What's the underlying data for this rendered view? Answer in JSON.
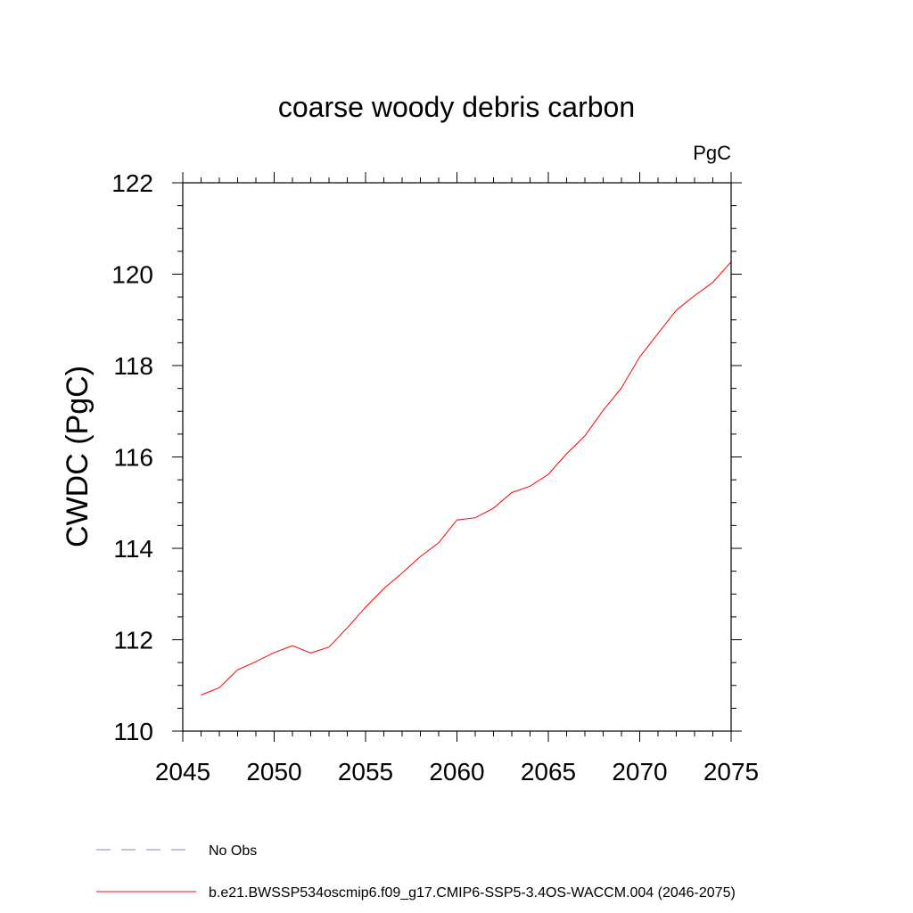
{
  "chart_data": {
    "type": "line",
    "title": "coarse woody debris carbon",
    "units_label": "PgC",
    "ylabel": "CWDC  (PgC)",
    "xlabel": "",
    "xlim": [
      2045,
      2075
    ],
    "ylim": [
      110,
      122
    ],
    "x_ticks": [
      "2045",
      "2050",
      "2055",
      "2060",
      "2065",
      "2070",
      "2075"
    ],
    "y_ticks": [
      "110",
      "112",
      "114",
      "116",
      "118",
      "120",
      "122"
    ],
    "grid": false,
    "legend_placement": "bottom",
    "series": [
      {
        "name": "b.e21.BWSSP534oscmip6.f09_g17.CMIP6-SSP5-3.4OS-WACCM.004 (2046-2075)",
        "color": "#ff0000",
        "style": "solid",
        "x": [
          2046,
          2047,
          2048,
          2049,
          2050,
          2051,
          2052,
          2053,
          2054,
          2055,
          2056,
          2057,
          2058,
          2059,
          2060,
          2061,
          2062,
          2063,
          2064,
          2065,
          2066,
          2067,
          2068,
          2069,
          2070,
          2071,
          2072,
          2073,
          2074,
          2075
        ],
        "y": [
          110.79,
          110.95,
          111.34,
          111.52,
          111.72,
          111.87,
          111.71,
          111.84,
          112.26,
          112.71,
          113.12,
          113.46,
          113.82,
          114.12,
          114.62,
          114.67,
          114.88,
          115.22,
          115.36,
          115.62,
          116.07,
          116.46,
          117.02,
          117.51,
          118.19,
          118.7,
          119.21,
          119.53,
          119.82,
          120.27
        ]
      }
    ],
    "legend": [
      {
        "label": "No Obs",
        "color": "#8080c0",
        "style": "dashed"
      },
      {
        "label": "b.e21.BWSSP534oscmip6.f09_g17.CMIP6-SSP5-3.4OS-WACCM.004 (2046-2075)",
        "color": "#ff0000",
        "style": "solid"
      }
    ]
  }
}
